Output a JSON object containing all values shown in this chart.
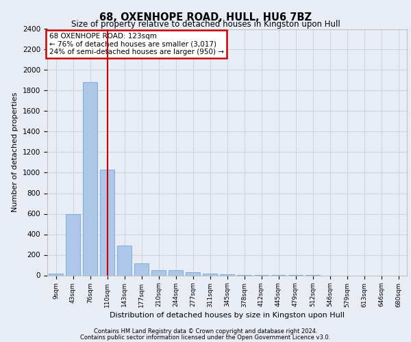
{
  "title": "68, OXENHOPE ROAD, HULL, HU6 7BZ",
  "subtitle": "Size of property relative to detached houses in Kingston upon Hull",
  "xlabel": "Distribution of detached houses by size in Kingston upon Hull",
  "ylabel": "Number of detached properties",
  "footer_line1": "Contains HM Land Registry data © Crown copyright and database right 2024.",
  "footer_line2": "Contains public sector information licensed under the Open Government Licence v3.0.",
  "categories": [
    "9sqm",
    "43sqm",
    "76sqm",
    "110sqm",
    "143sqm",
    "177sqm",
    "210sqm",
    "244sqm",
    "277sqm",
    "311sqm",
    "345sqm",
    "378sqm",
    "412sqm",
    "445sqm",
    "479sqm",
    "512sqm",
    "546sqm",
    "579sqm",
    "613sqm",
    "646sqm",
    "680sqm"
  ],
  "values": [
    20,
    600,
    1880,
    1030,
    290,
    120,
    50,
    48,
    30,
    15,
    8,
    5,
    3,
    2,
    1,
    1,
    0,
    0,
    0,
    0,
    0
  ],
  "bar_color": "#aec6e8",
  "bar_edge_color": "#5a9fd4",
  "red_line_x": 3.0,
  "annotation_text_line1": "68 OXENHOPE ROAD: 123sqm",
  "annotation_text_line2": "← 76% of detached houses are smaller (3,017)",
  "annotation_text_line3": "24% of semi-detached houses are larger (950) →",
  "annotation_box_color": "#ffffff",
  "annotation_box_edge_color": "#cc0000",
  "ylim": [
    0,
    2400
  ],
  "yticks": [
    0,
    200,
    400,
    600,
    800,
    1000,
    1200,
    1400,
    1600,
    1800,
    2000,
    2200,
    2400
  ],
  "grid_color": "#c8d0dc",
  "bg_color": "#e8ecf4",
  "plot_bg_color": "#e8ecf4"
}
